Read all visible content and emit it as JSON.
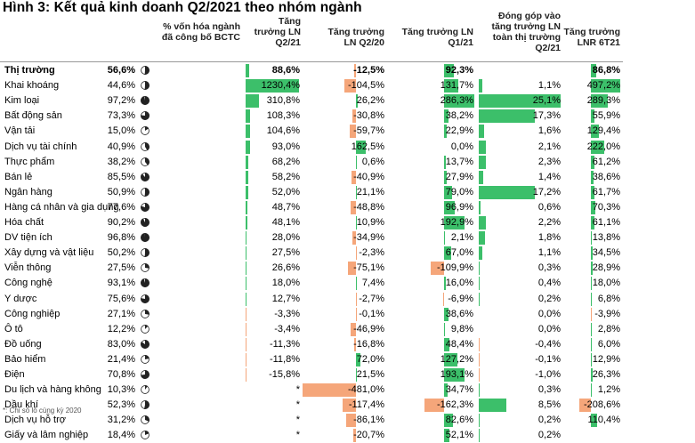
{
  "title": "Hình 3: Kết quả kinh doanh Q2/2021 theo nhóm ngành",
  "headers": {
    "cap": "% vốn hóa ngành\nđã công bố BCTC",
    "q221": "Tăng\ntrưởng LN\nQ2/21",
    "vsq220": "Tăng trưởng\nLN  Q2/20",
    "q121": "Tăng trưởng LN\nQ1/21",
    "contrib": "Đóng góp vào\ntăng trưởng LN\ntoàn thị trường\nQ2/21",
    "h121": "Tăng trưởng\nLNR 6T21"
  },
  "colors": {
    "positive_bar": "#3cbf6a",
    "negative_bar": "#f5a67a"
  },
  "rows": [
    {
      "name": "Thị trường",
      "pie": 0.5,
      "cap": "56,6%",
      "capv": 56.6,
      "q2": "88,6%",
      "q2v": 88.6,
      "q220": "-12,5%",
      "q220v": -12.5,
      "q1": "92,3%",
      "q1v": 92.3,
      "contrib": "",
      "contribv": 0,
      "h1": "86,8%",
      "h1v": 86.8,
      "bold": true
    },
    {
      "name": "Khai khoáng",
      "pie": 0.5,
      "cap": "44,6%",
      "capv": 44.6,
      "q2": "1230,4%",
      "q2v": 1230.4,
      "q220": "-104,5%",
      "q220v": -104.5,
      "q1": "131,7%",
      "q1v": 131.7,
      "contrib": "1,1%",
      "contribv": 1.1,
      "h1": "497,2%",
      "h1v": 497.2
    },
    {
      "name": "Kim loại",
      "pie": 0.95,
      "cap": "97,2%",
      "capv": 97.2,
      "q2": "310,8%",
      "q2v": 310.8,
      "q220": "26,2%",
      "q220v": 26.2,
      "q1": "286,3%",
      "q1v": 286.3,
      "contrib": "25,1%",
      "contribv": 25.1,
      "h1": "289,3%",
      "h1v": 289.3
    },
    {
      "name": "Bất động sản",
      "pie": 0.75,
      "cap": "73,3%",
      "capv": 73.3,
      "q2": "108,3%",
      "q2v": 108.3,
      "q220": "-30,8%",
      "q220v": -30.8,
      "q1": "38,2%",
      "q1v": 38.2,
      "contrib": "17,3%",
      "contribv": 17.3,
      "h1": "55,9%",
      "h1v": 55.9
    },
    {
      "name": "Vận tải",
      "pie": 0.15,
      "cap": "15,0%",
      "capv": 15.0,
      "q2": "104,6%",
      "q2v": 104.6,
      "q220": "-59,7%",
      "q220v": -59.7,
      "q1": "22,9%",
      "q1v": 22.9,
      "contrib": "1,6%",
      "contribv": 1.6,
      "h1": "129,4%",
      "h1v": 129.4
    },
    {
      "name": "Dịch vụ tài chính",
      "pie": 0.4,
      "cap": "40,9%",
      "capv": 40.9,
      "q2": "93,0%",
      "q2v": 93.0,
      "q220": "162,5%",
      "q220v": 162.5,
      "q1": "0,0%",
      "q1v": 0.0,
      "contrib": "2,1%",
      "contribv": 2.1,
      "h1": "222,0%",
      "h1v": 222.0
    },
    {
      "name": "Thực phẩm",
      "pie": 0.38,
      "cap": "38,2%",
      "capv": 38.2,
      "q2": "68,2%",
      "q2v": 68.2,
      "q220": "0,6%",
      "q220v": 0.6,
      "q1": "13,7%",
      "q1v": 13.7,
      "contrib": "2,3%",
      "contribv": 2.3,
      "h1": "61,2%",
      "h1v": 61.2
    },
    {
      "name": "Bán lẻ",
      "pie": 0.86,
      "cap": "85,5%",
      "capv": 85.5,
      "q2": "58,2%",
      "q2v": 58.2,
      "q220": "-40,9%",
      "q220v": -40.9,
      "q1": "27,9%",
      "q1v": 27.9,
      "contrib": "1,4%",
      "contribv": 1.4,
      "h1": "38,6%",
      "h1v": 38.6
    },
    {
      "name": "Ngân hàng",
      "pie": 0.5,
      "cap": "50,9%",
      "capv": 50.9,
      "q2": "52,0%",
      "q2v": 52.0,
      "q220": "21,1%",
      "q220v": 21.1,
      "q1": "79,0%",
      "q1v": 79.0,
      "contrib": "17,2%",
      "contribv": 17.2,
      "h1": "61,7%",
      "h1v": 61.7
    },
    {
      "name": "Hàng cá nhân và gia dụng",
      "pie": 0.78,
      "cap": "77,6%",
      "capv": 77.6,
      "q2": "48,7%",
      "q2v": 48.7,
      "q220": "-48,8%",
      "q220v": -48.8,
      "q1": "96,9%",
      "q1v": 96.9,
      "contrib": "0,6%",
      "contribv": 0.6,
      "h1": "70,3%",
      "h1v": 70.3
    },
    {
      "name": "Hóa chất",
      "pie": 0.9,
      "cap": "90,2%",
      "capv": 90.2,
      "q2": "48,1%",
      "q2v": 48.1,
      "q220": "10,9%",
      "q220v": 10.9,
      "q1": "192,9%",
      "q1v": 192.9,
      "contrib": "2,2%",
      "contribv": 2.2,
      "h1": "61,1%",
      "h1v": 61.1
    },
    {
      "name": "DV tiện ích",
      "pie": 0.97,
      "cap": "96,8%",
      "capv": 96.8,
      "q2": "28,0%",
      "q2v": 28.0,
      "q220": "-34,9%",
      "q220v": -34.9,
      "q1": "2,1%",
      "q1v": 2.1,
      "contrib": "1,8%",
      "contribv": 1.8,
      "h1": "13,8%",
      "h1v": 13.8
    },
    {
      "name": "Xây dựng và vật liệu",
      "pie": 0.5,
      "cap": "50,2%",
      "capv": 50.2,
      "q2": "27,5%",
      "q2v": 27.5,
      "q220": "-2,3%",
      "q220v": -2.3,
      "q1": "67,0%",
      "q1v": 67.0,
      "contrib": "1,1%",
      "contribv": 1.1,
      "h1": "34,5%",
      "h1v": 34.5
    },
    {
      "name": "Viễn thông",
      "pie": 0.27,
      "cap": "27,5%",
      "capv": 27.5,
      "q2": "26,6%",
      "q2v": 26.6,
      "q220": "-75,1%",
      "q220v": -75.1,
      "q1": "-109,9%",
      "q1v": -109.9,
      "contrib": "0,3%",
      "contribv": 0.3,
      "h1": "28,9%",
      "h1v": 28.9
    },
    {
      "name": "Công nghệ",
      "pie": 0.93,
      "cap": "93,1%",
      "capv": 93.1,
      "q2": "18,0%",
      "q2v": 18.0,
      "q220": "7,4%",
      "q220v": 7.4,
      "q1": "16,0%",
      "q1v": 16.0,
      "contrib": "0,4%",
      "contribv": 0.4,
      "h1": "18,0%",
      "h1v": 18.0
    },
    {
      "name": "Y dược",
      "pie": 0.76,
      "cap": "75,6%",
      "capv": 75.6,
      "q2": "12,7%",
      "q2v": 12.7,
      "q220": "-2,7%",
      "q220v": -2.7,
      "q1": "-6,9%",
      "q1v": -6.9,
      "contrib": "0,2%",
      "contribv": 0.2,
      "h1": "6,8%",
      "h1v": 6.8
    },
    {
      "name": "Công nghiệp",
      "pie": 0.27,
      "cap": "27,1%",
      "capv": 27.1,
      "q2": "-3,3%",
      "q2v": -3.3,
      "q220": "-0,1%",
      "q220v": -0.1,
      "q1": "38,6%",
      "q1v": 38.6,
      "contrib": "0,0%",
      "contribv": 0.0,
      "h1": "-3,9%",
      "h1v": -3.9
    },
    {
      "name": "Ô tô",
      "pie": 0.12,
      "cap": "12,2%",
      "capv": 12.2,
      "q2": "-3,4%",
      "q2v": -3.4,
      "q220": "-46,9%",
      "q220v": -46.9,
      "q1": "9,8%",
      "q1v": 9.8,
      "contrib": "0,0%",
      "contribv": 0.0,
      "h1": "2,8%",
      "h1v": 2.8
    },
    {
      "name": "Đồ uống",
      "pie": 0.83,
      "cap": "83,0%",
      "capv": 83.0,
      "q2": "-11,3%",
      "q2v": -11.3,
      "q220": "-16,8%",
      "q220v": -16.8,
      "q1": "48,4%",
      "q1v": 48.4,
      "contrib": "-0,4%",
      "contribv": -0.4,
      "h1": "6,0%",
      "h1v": 6.0
    },
    {
      "name": "Bảo hiểm",
      "pie": 0.21,
      "cap": "21,4%",
      "capv": 21.4,
      "q2": "-11,8%",
      "q2v": -11.8,
      "q220": "72,0%",
      "q220v": 72.0,
      "q1": "127,2%",
      "q1v": 127.2,
      "contrib": "-0,1%",
      "contribv": -0.1,
      "h1": "12,9%",
      "h1v": 12.9
    },
    {
      "name": "Điện",
      "pie": 0.71,
      "cap": "70,8%",
      "capv": 70.8,
      "q2": "-15,8%",
      "q2v": -15.8,
      "q220": "21,5%",
      "q220v": 21.5,
      "q1": "193,1%",
      "q1v": 193.1,
      "contrib": "-1,0%",
      "contribv": -1.0,
      "h1": "26,3%",
      "h1v": 26.3
    },
    {
      "name": "Du lịch và hàng không",
      "pie": 0.1,
      "cap": "10,3%",
      "capv": 10.3,
      "q2": "*",
      "q2v": 0,
      "q220": "-481,0%",
      "q220v": -481.0,
      "q1": "34,7%",
      "q1v": 34.7,
      "contrib": "0,3%",
      "contribv": 0.3,
      "h1": "1,2%",
      "h1v": 1.2
    },
    {
      "name": "Dầu khí",
      "pie": 0.52,
      "cap": "52,3%",
      "capv": 52.3,
      "q2": "*",
      "q2v": 0,
      "q220": "-117,4%",
      "q220v": -117.4,
      "q1": "-162,3%",
      "q1v": -162.3,
      "contrib": "8,5%",
      "contribv": 8.5,
      "h1": "-208,6%",
      "h1v": -208.6
    },
    {
      "name": "Dịch vụ hỗ trợ",
      "pie": 0.31,
      "cap": "31,2%",
      "capv": 31.2,
      "q2": "*",
      "q2v": 0,
      "q220": "-86,1%",
      "q220v": -86.1,
      "q1": "82,6%",
      "q1v": 82.6,
      "contrib": "0,2%",
      "contribv": 0.2,
      "h1": "110,4%",
      "h1v": 110.4
    },
    {
      "name": "Giấy và lâm nghiệp",
      "pie": 0.18,
      "cap": "18,4%",
      "capv": 18.4,
      "q2": "*",
      "q2v": 0,
      "q220": "-20,7%",
      "q220v": -20.7,
      "q1": "52,1%",
      "q1v": 52.1,
      "contrib": "0,2%",
      "contribv": 0.2,
      "h1": "",
      "h1v": 0
    }
  ],
  "footnote": "*: Chỉ số lỗ cùng kỳ 2020"
}
